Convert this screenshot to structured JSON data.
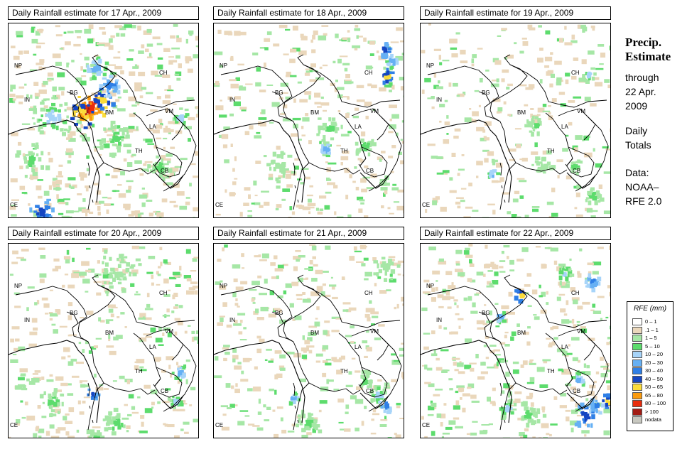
{
  "panels": [
    {
      "title": "Daily Rainfall estimate for  17 Apr., 2009",
      "intensity": 3
    },
    {
      "title": "Daily Rainfall estimate for  18 Apr., 2009",
      "intensity": 1
    },
    {
      "title": "Daily Rainfall estimate for  19 Apr., 2009",
      "intensity": 0
    },
    {
      "title": "Daily Rainfall estimate for  20 Apr., 2009",
      "intensity": 1
    },
    {
      "title": "Daily Rainfall estimate for  21 Apr., 2009",
      "intensity": 1
    },
    {
      "title": "Daily Rainfall estimate for  22 Apr., 2009",
      "intensity": 2
    }
  ],
  "map_labels": {
    "NP": "NP",
    "CH": "CH",
    "IN": "IN",
    "BG": "BG",
    "BM": "BM",
    "VM": "VM",
    "LA": "LA",
    "TH": "TH",
    "CB": "CB",
    "CE": "CE"
  },
  "side": {
    "title_line1": "Precip.",
    "title_line2": "Estimate",
    "through": "through",
    "date1": "22 Apr.",
    "date2": "2009",
    "daily1": "Daily",
    "daily2": "Totals",
    "data1": "Data:",
    "data2": "NOAA–",
    "data3": "RFE 2.0"
  },
  "legend": {
    "title": "RFE (mm)",
    "items": [
      {
        "label": "0 – 1",
        "color": "#ffffff"
      },
      {
        "label": ".1 – 1",
        "color": "#ead7bb"
      },
      {
        "label": "1 – 5",
        "color": "#a6e7a6"
      },
      {
        "label": "5 – 10",
        "color": "#5ddc6d"
      },
      {
        "label": "10 – 20",
        "color": "#a7d4f9"
      },
      {
        "label": "20 – 30",
        "color": "#66b0f4"
      },
      {
        "label": "30 – 40",
        "color": "#2f7fe6"
      },
      {
        "label": "40 – 50",
        "color": "#1546c2"
      },
      {
        "label": "50 – 65",
        "color": "#fbdc3b"
      },
      {
        "label": "65 – 80",
        "color": "#fb9b0e"
      },
      {
        "label": "80 – 100",
        "color": "#e82c0c"
      },
      {
        "label": "> 100",
        "color": "#a21c14"
      },
      {
        "label": "nodata",
        "color": "#c8c8c0"
      }
    ]
  }
}
